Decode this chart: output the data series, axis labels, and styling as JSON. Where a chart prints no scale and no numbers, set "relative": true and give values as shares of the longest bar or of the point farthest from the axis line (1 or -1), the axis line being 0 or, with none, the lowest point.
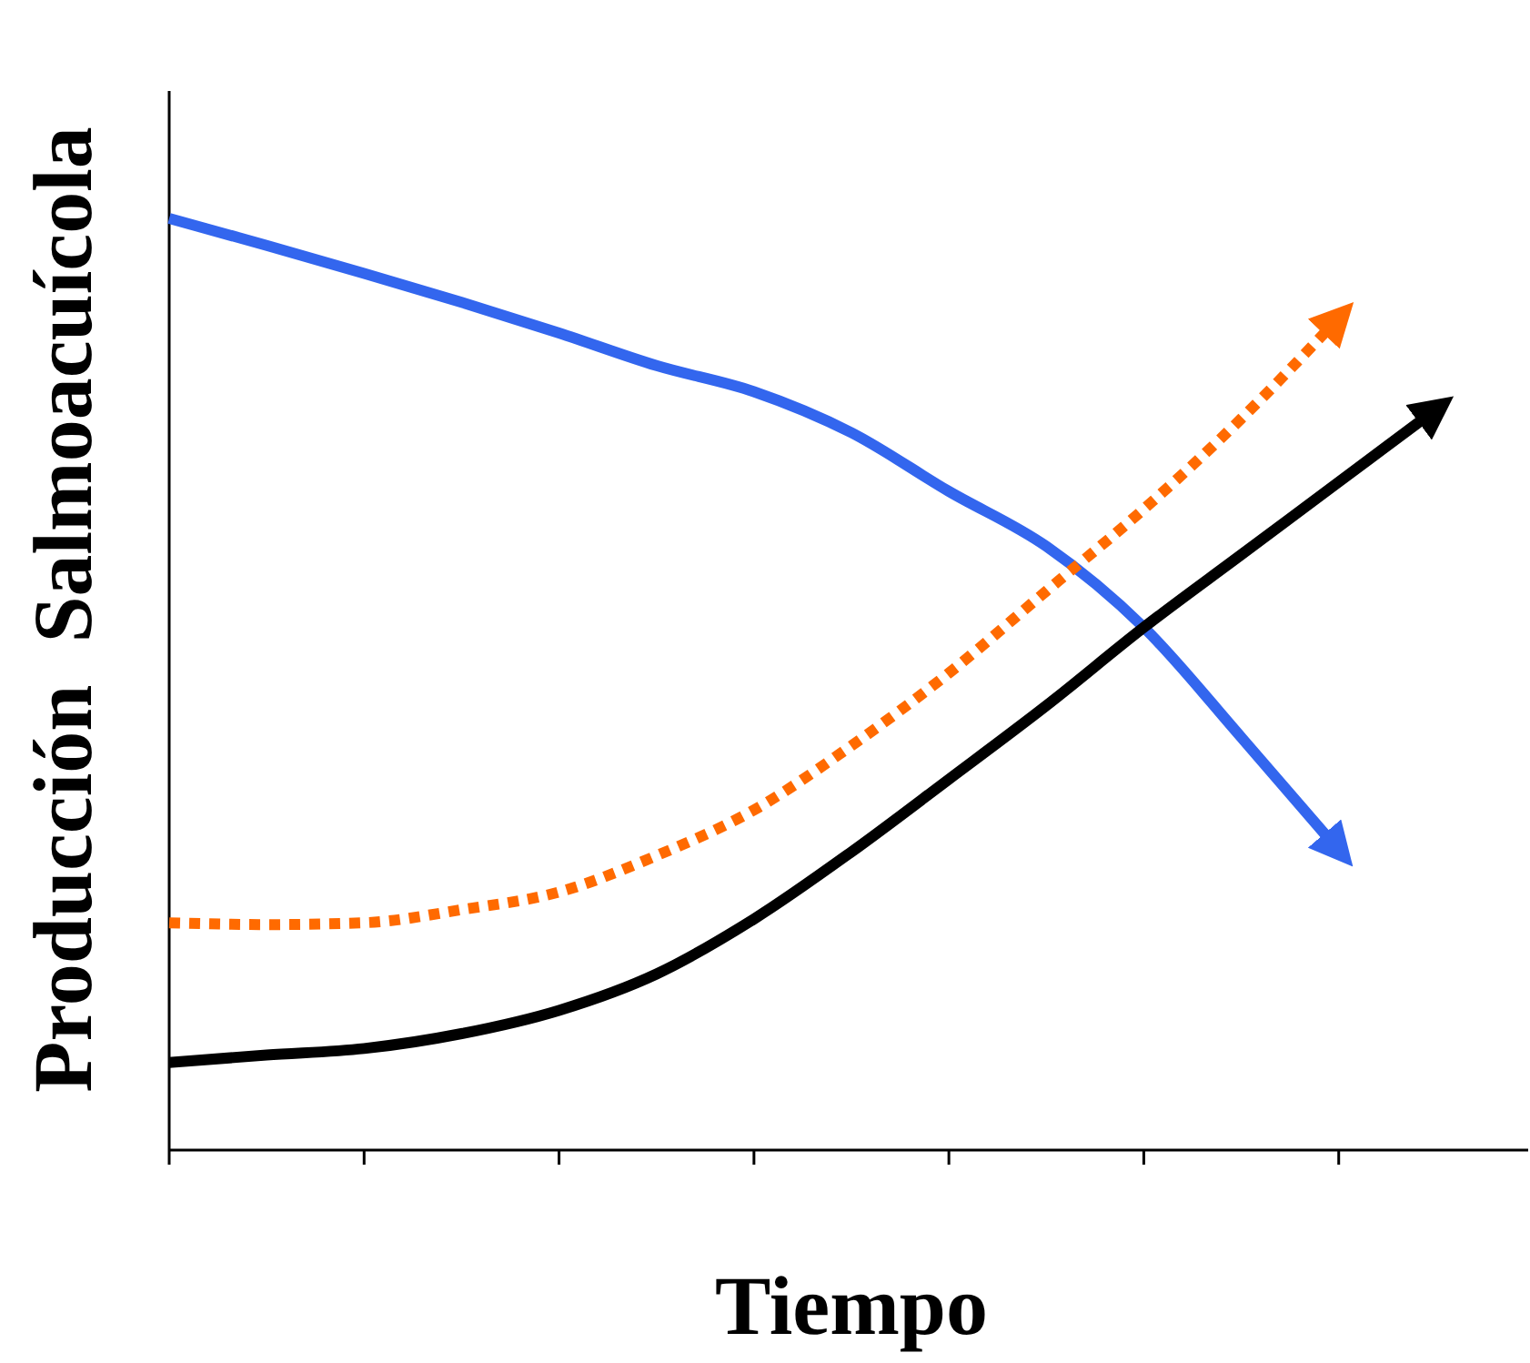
{
  "chart_data": {
    "type": "line",
    "relative": true,
    "xlabel": "Tiempo",
    "ylabel": "Producción  Salmoacuícola",
    "grid": false,
    "categories": [
      null,
      null,
      null,
      null,
      null,
      null,
      null,
      null,
      null,
      null,
      null,
      null,
      null,
      null,
      null
    ],
    "series": [
      {
        "color": "#3366ee",
        "line_style": "solid",
        "values": [
          1,
          0.971,
          0.941,
          0.91,
          0.877,
          0.842,
          0.814,
          0.77,
          0.707,
          0.648,
          0.561,
          0.443,
          0.322,
          null,
          null
        ]
      },
      {
        "color": "#ff6a00",
        "line_style": "dotted",
        "values": [
          0.244,
          0.242,
          0.244,
          0.258,
          0.277,
          0.316,
          0.365,
          0.434,
          0.512,
          0.6,
          0.688,
          0.785,
          0.893,
          null,
          null
        ]
      },
      {
        "color": "#000000",
        "line_style": "solid",
        "values": [
          0.094,
          0.102,
          0.109,
          0.125,
          0.15,
          0.189,
          0.248,
          0.32,
          0.398,
          0.477,
          0.561,
          0.639,
          0.717,
          0.795,
          null
        ]
      }
    ]
  }
}
